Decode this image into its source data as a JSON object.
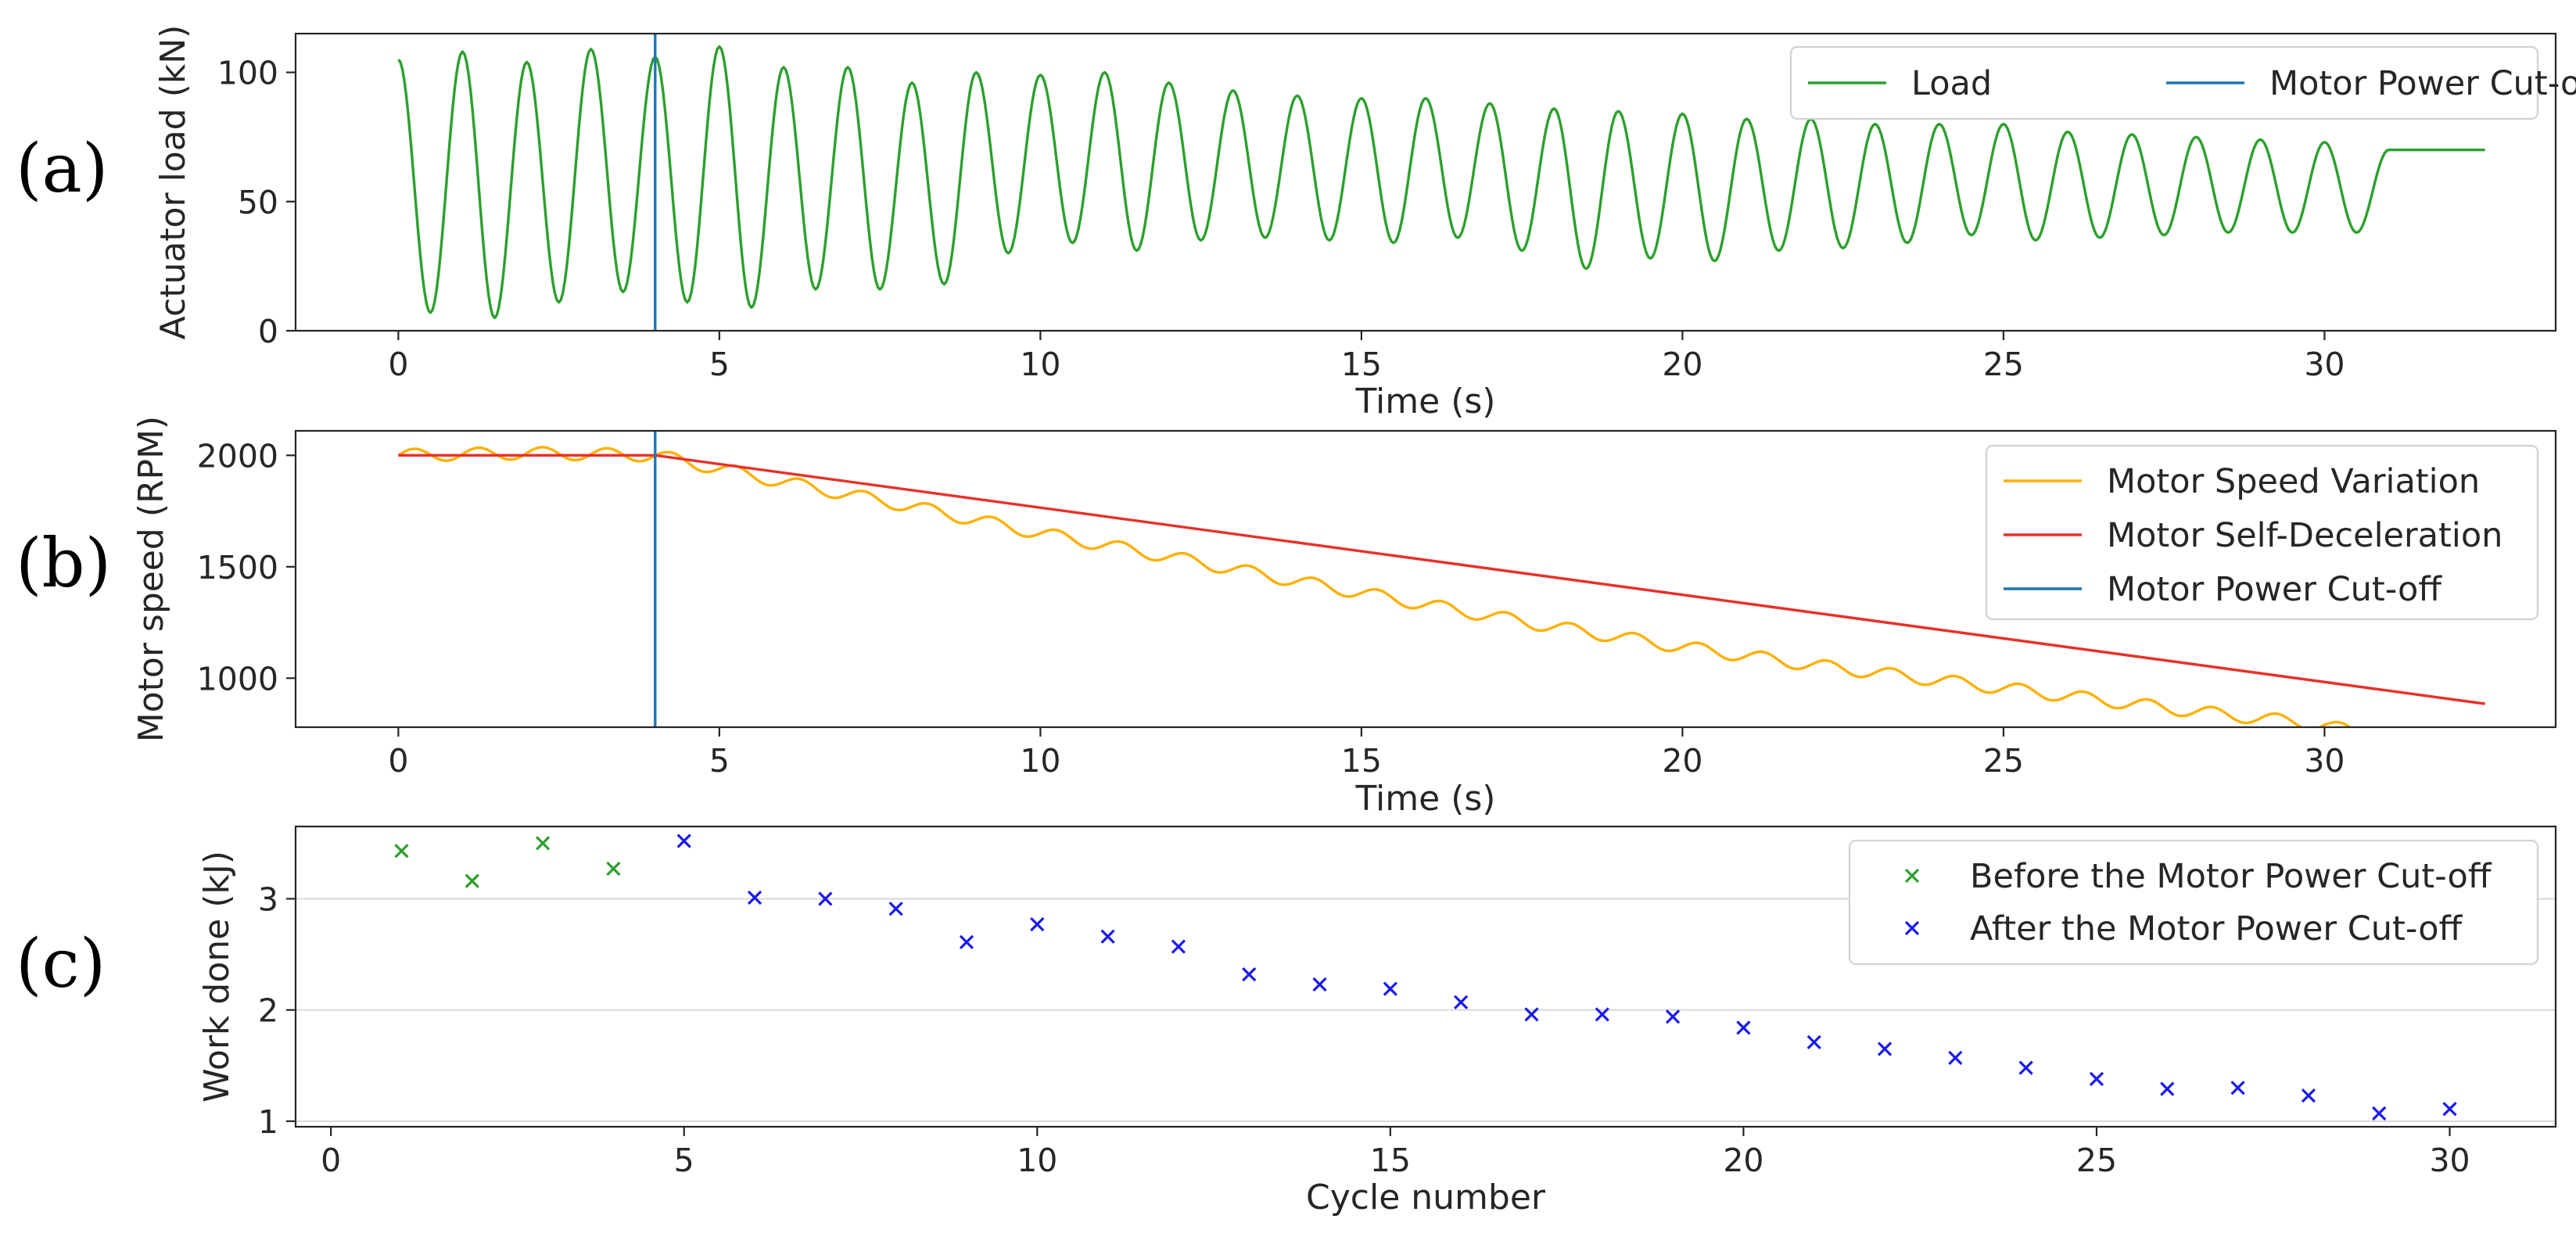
{
  "chart_data": [
    {
      "type": "line",
      "panel_label": "(a)",
      "xlabel": "Time (s)",
      "ylabel": "Actuator load (kN)",
      "xlim": [
        -1.6,
        33.6
      ],
      "ylim": [
        0,
        115
      ],
      "xticks": [
        0,
        5,
        10,
        15,
        20,
        25,
        30
      ],
      "yticks": [
        0,
        50,
        100
      ],
      "grid": false,
      "legend_position": "top-right",
      "legend_layout": "horizontal",
      "oscillation_period_s": 1.0,
      "cutoff_time_s": 4.0,
      "series": [
        {
          "name": "Load",
          "color": "#2ca02c",
          "x": [
            0.0,
            0.5,
            1.0,
            1.5,
            2.0,
            2.5,
            3.0,
            3.5,
            4.0,
            4.5,
            5.0,
            5.5,
            6.0,
            6.5,
            7.0,
            7.5,
            8.0,
            8.5,
            9.0,
            9.5,
            10.0,
            10.5,
            11.0,
            11.5,
            12.0,
            12.5,
            13.0,
            13.5,
            14.0,
            14.5,
            15.0,
            15.5,
            16.0,
            16.5,
            17.0,
            17.5,
            18.0,
            18.5,
            19.0,
            19.5,
            20.0,
            20.5,
            21.0,
            21.5,
            22.0,
            22.5,
            23.0,
            23.5,
            24.0,
            24.5,
            25.0,
            25.5,
            26.0,
            26.5,
            27.0,
            27.5,
            28.0,
            28.5,
            29.0,
            29.5,
            30.0,
            30.5,
            31.0,
            31.5,
            32.0,
            32.5
          ],
          "y": [
            105,
            7,
            108,
            5,
            104,
            11,
            109,
            15,
            106,
            11,
            110,
            9,
            102,
            16,
            102,
            16,
            96,
            18,
            100,
            30,
            99,
            34,
            100,
            31,
            96,
            35,
            93,
            36,
            91,
            35,
            90,
            34,
            90,
            36,
            88,
            31,
            86,
            24,
            85,
            28,
            84,
            27,
            82,
            31,
            82,
            32,
            80,
            34,
            80,
            37,
            80,
            35,
            77,
            36,
            76,
            37,
            75,
            38,
            74,
            38,
            73,
            38,
            70,
            70,
            70,
            70
          ]
        },
        {
          "name": "Motor Power Cut-off",
          "color": "#1f77b4",
          "x": [
            4.0,
            4.0
          ],
          "y": [
            0,
            115
          ]
        }
      ]
    },
    {
      "type": "line",
      "panel_label": "(b)",
      "xlabel": "Time (s)",
      "ylabel": "Motor speed (RPM)",
      "xlim": [
        -1.6,
        33.6
      ],
      "ylim": [
        780,
        2110
      ],
      "xticks": [
        0,
        5,
        10,
        15,
        20,
        25,
        30
      ],
      "yticks": [
        1000,
        1500,
        2000
      ],
      "grid": false,
      "legend_position": "right",
      "legend_layout": "vertical",
      "cutoff_time_s": 4.0,
      "series": [
        {
          "name": "Motor Speed Variation",
          "color": "#ffb000",
          "x": [
            0.0,
            2.0,
            4.0,
            6.0,
            8.0,
            10.0,
            12.0,
            14.0,
            16.0,
            18.0,
            20.0,
            22.0,
            24.0,
            26.0,
            28.0,
            30.0,
            31.0,
            32.5
          ],
          "y": [
            2000,
            2010,
            2000,
            1880,
            1770,
            1650,
            1545,
            1435,
            1330,
            1230,
            1140,
            1060,
            990,
            920,
            850,
            790,
            720,
            690
          ],
          "ripple_amplitude": 28,
          "ripple_period_s": 1.0
        },
        {
          "name": "Motor Self-Deceleration",
          "color": "#e8302a",
          "x": [
            0.0,
            4.0,
            32.5
          ],
          "y": [
            2000,
            2000,
            885
          ]
        },
        {
          "name": "Motor Power Cut-off",
          "color": "#1f77b4",
          "x": [
            4.0,
            4.0
          ],
          "y": [
            780,
            2110
          ]
        }
      ]
    },
    {
      "type": "scatter",
      "panel_label": "(c)",
      "xlabel": "Cycle number",
      "ylabel": "Work done (kJ)",
      "xlim": [
        -0.5,
        31.5
      ],
      "ylim": [
        0.95,
        3.65
      ],
      "xticks": [
        0,
        5,
        10,
        15,
        20,
        25,
        30
      ],
      "yticks": [
        1,
        2,
        3
      ],
      "grid": true,
      "legend_position": "top-right",
      "legend_layout": "vertical",
      "marker": "x",
      "series": [
        {
          "name": "Before the Motor Power Cut-off",
          "color": "#2ca02c",
          "x": [
            1,
            2,
            3,
            4
          ],
          "y": [
            3.43,
            3.16,
            3.5,
            3.27
          ]
        },
        {
          "name": "After the Motor Power Cut-off",
          "color": "#1a1aee",
          "x": [
            5,
            6,
            7,
            8,
            9,
            10,
            11,
            12,
            13,
            14,
            15,
            16,
            17,
            18,
            19,
            20,
            21,
            22,
            23,
            24,
            25,
            26,
            27,
            28,
            29,
            30
          ],
          "y": [
            3.52,
            3.01,
            3.0,
            2.91,
            2.61,
            2.77,
            2.66,
            2.57,
            2.32,
            2.23,
            2.19,
            2.07,
            1.96,
            1.96,
            1.94,
            1.84,
            1.71,
            1.65,
            1.57,
            1.48,
            1.38,
            1.29,
            1.3,
            1.23,
            1.07,
            1.11
          ]
        }
      ]
    }
  ]
}
